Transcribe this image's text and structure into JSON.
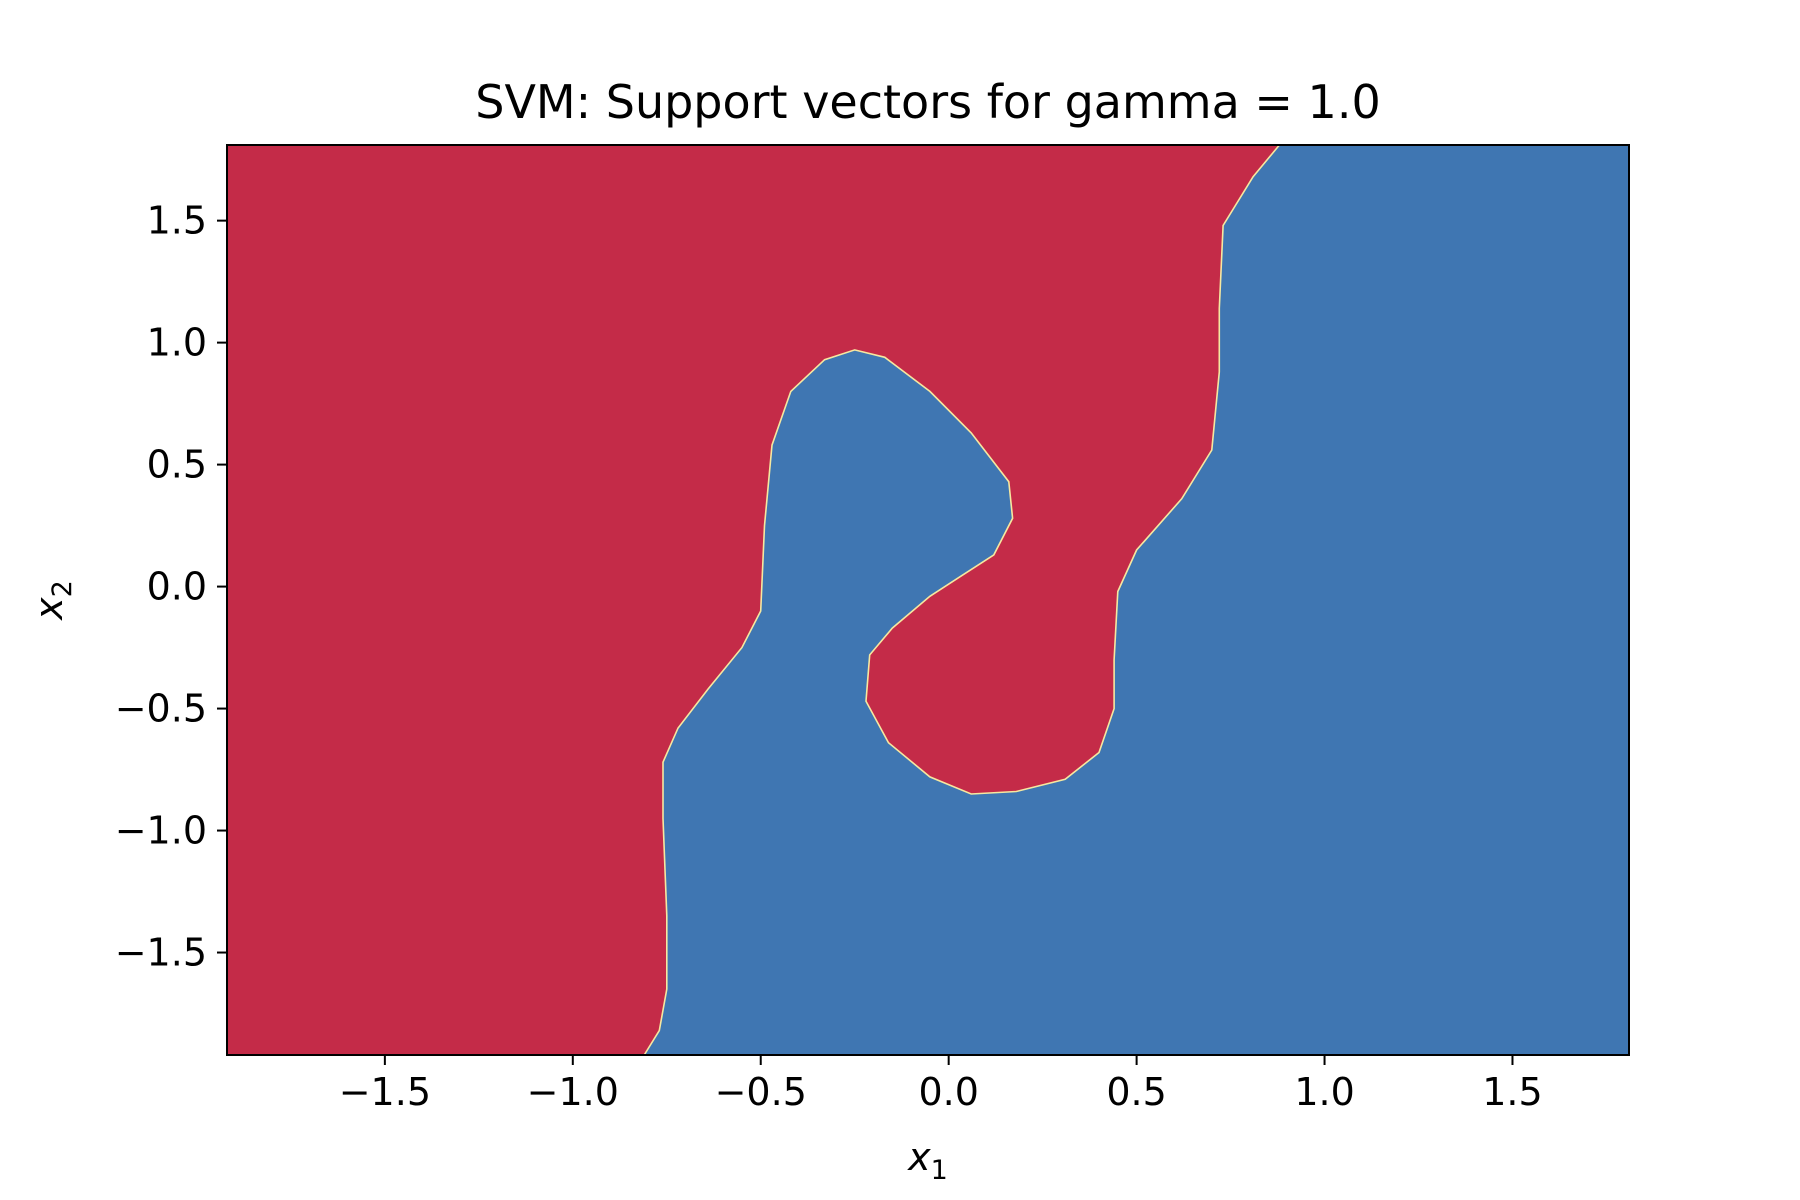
{
  "chart_data": {
    "type": "heatmap",
    "title": "SVM: Support vectors for gamma = 1.0",
    "xlabel": {
      "base": "x",
      "sub": "1"
    },
    "ylabel": {
      "base": "x",
      "sub": "2"
    },
    "xlim": [
      -1.92,
      1.81
    ],
    "ylim": [
      -1.92,
      1.81
    ],
    "xticks": [
      {
        "value": -1.5,
        "label": "−1.5"
      },
      {
        "value": -1.0,
        "label": "−1.0"
      },
      {
        "value": -0.5,
        "label": "−0.5"
      },
      {
        "value": 0.0,
        "label": "0.0"
      },
      {
        "value": 0.5,
        "label": "0.5"
      },
      {
        "value": 1.0,
        "label": "1.0"
      },
      {
        "value": 1.5,
        "label": "1.5"
      }
    ],
    "yticks": [
      {
        "value": 1.5,
        "label": "1.5"
      },
      {
        "value": 1.0,
        "label": "1.0"
      },
      {
        "value": 0.5,
        "label": "0.5"
      },
      {
        "value": 0.0,
        "label": "0.0"
      },
      {
        "value": -0.5,
        "label": "−0.5"
      },
      {
        "value": -1.0,
        "label": "−1.0"
      },
      {
        "value": -1.5,
        "label": "−1.5"
      }
    ],
    "regions": {
      "left_class_color": "#c42b48",
      "right_class_color": "#3f76b2",
      "boundary_color": "#f6e8a0"
    },
    "decision_boundary": [
      [
        -0.81,
        -1.92
      ],
      [
        -0.77,
        -1.82
      ],
      [
        -0.75,
        -1.65
      ],
      [
        -0.75,
        -1.35
      ],
      [
        -0.76,
        -0.95
      ],
      [
        -0.76,
        -0.72
      ],
      [
        -0.72,
        -0.58
      ],
      [
        -0.64,
        -0.42
      ],
      [
        -0.55,
        -0.25
      ],
      [
        -0.5,
        -0.1
      ],
      [
        -0.49,
        0.25
      ],
      [
        -0.47,
        0.58
      ],
      [
        -0.42,
        0.8
      ],
      [
        -0.33,
        0.93
      ],
      [
        -0.25,
        0.97
      ],
      [
        -0.17,
        0.94
      ],
      [
        -0.05,
        0.8
      ],
      [
        0.06,
        0.63
      ],
      [
        0.16,
        0.43
      ],
      [
        0.17,
        0.28
      ],
      [
        0.12,
        0.13
      ],
      [
        0.03,
        0.04
      ],
      [
        -0.05,
        -0.04
      ],
      [
        -0.15,
        -0.17
      ],
      [
        -0.21,
        -0.28
      ],
      [
        -0.22,
        -0.47
      ],
      [
        -0.16,
        -0.64
      ],
      [
        -0.05,
        -0.78
      ],
      [
        0.06,
        -0.85
      ],
      [
        0.18,
        -0.84
      ],
      [
        0.31,
        -0.79
      ],
      [
        0.4,
        -0.68
      ],
      [
        0.44,
        -0.5
      ],
      [
        0.44,
        -0.3
      ],
      [
        0.45,
        -0.02
      ],
      [
        0.5,
        0.15
      ],
      [
        0.62,
        0.36
      ],
      [
        0.7,
        0.56
      ],
      [
        0.72,
        0.88
      ],
      [
        0.72,
        1.14
      ],
      [
        0.73,
        1.48
      ],
      [
        0.81,
        1.68
      ],
      [
        0.88,
        1.81
      ]
    ],
    "grid": false,
    "legend": "none"
  }
}
